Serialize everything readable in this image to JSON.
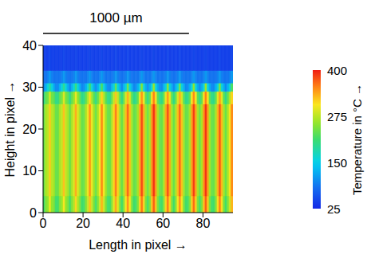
{
  "chart_data": {
    "type": "heatmap",
    "x_label": "Length in pixel →",
    "y_label": "Height in pixel →",
    "xlim": [
      0,
      95
    ],
    "ylim": [
      0,
      40
    ],
    "xticks": [
      0,
      20,
      40,
      60,
      80
    ],
    "yticks": [
      0,
      10,
      20,
      30,
      40
    ],
    "x_edges": [
      0,
      1,
      2,
      3,
      4,
      5,
      6,
      7,
      8,
      9,
      10,
      11,
      12,
      13,
      14,
      15,
      16,
      17,
      18,
      19,
      20,
      21,
      22,
      23,
      24,
      25,
      26,
      27,
      28,
      29,
      30,
      31,
      32,
      33,
      34,
      35,
      36,
      37,
      38,
      39,
      40,
      41,
      42,
      43,
      44,
      45,
      46,
      47,
      48,
      49,
      50,
      51,
      52,
      53,
      54,
      55,
      56,
      57,
      58,
      59,
      60,
      61,
      62,
      63,
      64,
      65,
      66,
      67,
      68,
      69,
      70,
      71,
      72,
      73,
      74,
      75,
      76,
      77,
      78,
      79,
      80,
      81,
      82,
      83,
      84,
      85,
      86,
      87,
      88,
      89,
      90,
      91,
      92,
      93,
      94,
      95
    ],
    "y_edges": [
      0,
      4,
      26,
      29,
      31,
      34,
      40
    ],
    "values": [
      [
        215,
        245,
        255,
        300,
        255,
        245,
        215,
        215,
        245,
        260,
        305,
        260,
        245,
        215,
        245,
        270,
        315,
        270,
        245,
        215,
        215,
        245,
        280,
        325,
        280,
        245,
        215,
        245,
        285,
        330,
        285,
        245,
        215,
        215,
        245,
        295,
        340,
        295,
        245,
        215,
        245,
        305,
        350,
        305,
        245,
        215,
        215,
        245,
        315,
        360,
        315,
        245,
        215,
        245,
        325,
        370,
        325,
        245,
        215,
        215,
        245,
        315,
        360,
        315,
        245,
        215,
        245,
        305,
        350,
        305,
        245,
        215,
        215,
        245,
        320,
        365,
        320,
        245,
        215,
        245,
        325,
        370,
        325,
        245,
        215,
        215,
        245,
        310,
        355,
        310,
        245,
        215,
        245,
        285,
        330
      ],
      [
        235,
        265,
        275,
        320,
        275,
        265,
        235,
        235,
        265,
        280,
        325,
        280,
        265,
        235,
        265,
        290,
        335,
        290,
        265,
        235,
        235,
        265,
        300,
        345,
        300,
        265,
        235,
        265,
        305,
        350,
        305,
        265,
        235,
        235,
        265,
        315,
        360,
        315,
        265,
        235,
        265,
        325,
        370,
        325,
        265,
        235,
        235,
        265,
        335,
        380,
        335,
        265,
        235,
        265,
        345,
        390,
        345,
        265,
        235,
        235,
        265,
        335,
        380,
        335,
        265,
        235,
        265,
        325,
        370,
        325,
        265,
        235,
        235,
        265,
        340,
        385,
        340,
        265,
        235,
        265,
        345,
        390,
        345,
        265,
        235,
        235,
        265,
        330,
        375,
        330,
        265,
        235,
        265,
        305,
        350
      ],
      [
        200,
        230,
        240,
        285,
        240,
        230,
        200,
        200,
        230,
        245,
        290,
        245,
        230,
        200,
        230,
        255,
        300,
        255,
        230,
        200,
        200,
        230,
        265,
        310,
        265,
        230,
        200,
        230,
        270,
        315,
        270,
        230,
        200,
        200,
        230,
        280,
        325,
        280,
        230,
        200,
        230,
        290,
        335,
        290,
        230,
        200,
        200,
        230,
        300,
        345,
        300,
        230,
        200,
        230,
        310,
        355,
        310,
        230,
        200,
        200,
        230,
        300,
        345,
        300,
        230,
        200,
        230,
        290,
        335,
        290,
        230,
        200,
        200,
        230,
        305,
        350,
        305,
        230,
        200,
        230,
        310,
        355,
        310,
        230,
        200,
        200,
        230,
        295,
        340,
        295,
        230,
        200,
        230,
        270,
        315
      ],
      [
        100,
        125,
        160,
        190,
        160,
        125,
        100,
        100,
        125,
        160,
        195,
        160,
        125,
        100,
        125,
        160,
        205,
        160,
        125,
        100,
        100,
        125,
        160,
        215,
        160,
        125,
        100,
        125,
        160,
        220,
        160,
        125,
        100,
        100,
        125,
        160,
        230,
        160,
        125,
        100,
        125,
        160,
        240,
        160,
        125,
        100,
        100,
        125,
        160,
        250,
        160,
        125,
        100,
        125,
        160,
        260,
        160,
        125,
        100,
        100,
        125,
        160,
        250,
        160,
        125,
        100,
        125,
        160,
        240,
        160,
        125,
        100,
        100,
        125,
        160,
        255,
        160,
        125,
        100,
        125,
        160,
        260,
        160,
        125,
        100,
        100,
        125,
        160,
        245,
        160,
        125,
        100,
        125,
        160,
        220
      ],
      [
        85,
        85,
        95,
        110,
        95,
        85,
        85,
        85,
        85,
        95,
        110,
        95,
        85,
        85,
        85,
        95,
        110,
        95,
        85,
        85,
        85,
        85,
        95,
        110,
        95,
        85,
        85,
        85,
        95,
        110,
        95,
        85,
        85,
        85,
        85,
        95,
        110,
        95,
        85,
        85,
        85,
        95,
        110,
        95,
        85,
        85,
        85,
        85,
        95,
        110,
        95,
        85,
        85,
        85,
        95,
        110,
        95,
        85,
        85,
        85,
        85,
        95,
        110,
        95,
        85,
        85,
        85,
        95,
        110,
        95,
        85,
        85,
        85,
        85,
        95,
        110,
        95,
        85,
        85,
        85,
        95,
        110,
        95,
        85,
        85,
        85,
        85,
        95,
        110,
        95,
        85,
        85,
        85,
        95,
        110
      ],
      [
        45,
        45,
        45,
        50,
        45,
        45,
        45,
        45,
        45,
        45,
        50,
        45,
        45,
        45,
        45,
        45,
        50,
        45,
        45,
        45,
        45,
        45,
        45,
        50,
        45,
        45,
        45,
        45,
        45,
        50,
        45,
        45,
        45,
        45,
        45,
        45,
        50,
        45,
        45,
        45,
        45,
        45,
        50,
        45,
        45,
        45,
        45,
        45,
        45,
        50,
        45,
        45,
        45,
        45,
        45,
        50,
        45,
        45,
        45,
        45,
        45,
        45,
        50,
        45,
        45,
        45,
        45,
        45,
        50,
        45,
        45,
        45,
        45,
        45,
        45,
        50,
        45,
        45,
        45,
        45,
        45,
        50,
        45,
        45,
        45,
        45,
        45,
        45,
        50,
        45,
        45,
        45,
        45,
        45,
        50
      ]
    ],
    "colorbar": {
      "label": "Temperature in °C →",
      "range": [
        25,
        400
      ],
      "ticks": [
        25,
        150,
        275,
        400
      ]
    },
    "scale_bar": {
      "label": "1000 µm",
      "length": 73
    }
  }
}
